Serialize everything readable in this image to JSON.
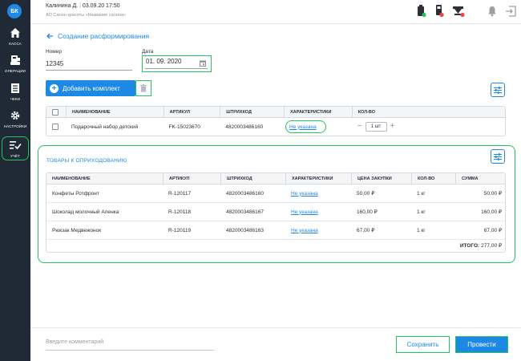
{
  "sidebar": {
    "logo": "БК",
    "items": [
      {
        "label": "КАССА",
        "icon": "home-icon"
      },
      {
        "label": "ОПЕРАЦИИ",
        "icon": "cashbox-icon"
      },
      {
        "label": "ЧЕКИ",
        "icon": "receipt-icon"
      },
      {
        "label": "НАСТРОЙКИ",
        "icon": "gear-icon"
      },
      {
        "label": "УЧЁТ",
        "icon": "inventory-icon",
        "active": true
      }
    ]
  },
  "header": {
    "user": "Калинина Д.",
    "datetime": "03.09.20 17:50",
    "org": "АО Салон красоты «Название салона»"
  },
  "page": {
    "title": "Создание расформирования",
    "number_label": "Номер",
    "number_value": "12345",
    "date_label": "Дата",
    "date_value": "01. 09. 2020"
  },
  "toolbar": {
    "add_label": "Добавить комплект"
  },
  "kits_table": {
    "headers": [
      "НАИМЕНОВАНИЕ",
      "АРТИКУЛ",
      "ШТРИХКОД",
      "ХАРАКТЕРИСТИКИ",
      "КОЛ-ВО"
    ],
    "rows": [
      {
        "name": "Подарочный набор детский",
        "article": "FK-15023670",
        "barcode": "4820003486160",
        "characteristics": "Не указана",
        "qty": "1 шт"
      }
    ]
  },
  "goods": {
    "title": "ТОВАРЫ К ОПРИХОДОВАНИЮ",
    "headers": [
      "НАИМЕНОВАНИЕ",
      "АРТИКУЛ",
      "ШТРИХКОД",
      "ХАРАКТЕРИСТИКИ",
      "ЦЕНА ЗАКУПКИ",
      "КОЛ-ВО",
      "СУММА"
    ],
    "rows": [
      {
        "name": "Конфеты Ротфронт",
        "article": "R-120117",
        "barcode": "4820003486160",
        "characteristics": "Не указана",
        "price": "50,00 ₽",
        "qty": "1 кг",
        "sum": "50,00 ₽"
      },
      {
        "name": "Шоколад молочный Аленка",
        "article": "R-120118",
        "barcode": "4820003486167",
        "characteristics": "Не указана",
        "price": "160,00 ₽",
        "qty": "1 кг",
        "sum": "160,00 ₽"
      },
      {
        "name": "Рюкзак Медвежонок",
        "article": "R-120119",
        "barcode": "4820003486163",
        "characteristics": "Не указана",
        "price": "67,00 ₽",
        "qty": "1 кг",
        "sum": "67,00 ₽"
      }
    ],
    "total_label": "ИТОГО:",
    "total_value": "277,00 ₽"
  },
  "footer": {
    "comment_placeholder": "Введите комментарий",
    "save_label": "Сохранить",
    "post_label": "Провести"
  },
  "colors": {
    "accent": "#1e88e5",
    "sidebar": "#1f2a36",
    "highlight": "#22c55e"
  }
}
